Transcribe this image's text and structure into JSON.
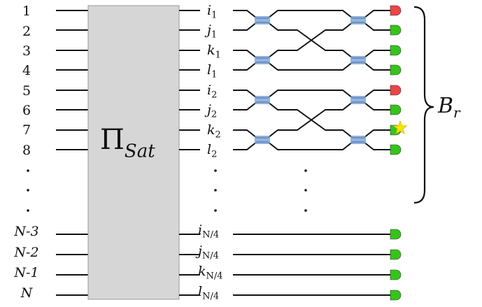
{
  "inputs": [
    "1",
    "2",
    "3",
    "4",
    "5",
    "6",
    "7",
    "8",
    "N-3",
    "N-2",
    "N-1",
    "N"
  ],
  "box_symbol": "Π",
  "box_subscript": "Sat",
  "outputs": [
    {
      "base": "i",
      "sub": "1"
    },
    {
      "base": "j",
      "sub": "1"
    },
    {
      "base": "k",
      "sub": "1"
    },
    {
      "base": "l",
      "sub": "1"
    },
    {
      "base": "i",
      "sub": "2"
    },
    {
      "base": "j",
      "sub": "2"
    },
    {
      "base": "k",
      "sub": "2"
    },
    {
      "base": "l",
      "sub": "2"
    },
    {
      "base": "i",
      "sub": "N/4"
    },
    {
      "base": "j",
      "sub": "N/4"
    },
    {
      "base": "k",
      "sub": "N/4"
    },
    {
      "base": "l",
      "sub": "N/4"
    }
  ],
  "brace_label": "B",
  "brace_subscript": "r",
  "detector_states": [
    "red",
    "green",
    "green",
    "green",
    "red",
    "green",
    "green",
    "green",
    "green",
    "green",
    "green",
    "green"
  ],
  "star_on_output": "k2",
  "colors": {
    "box_fill": "#d6d6d6",
    "coupler": "#7fa7d8",
    "detector_green": "#36c41a",
    "detector_red": "#ef4444",
    "star": "#f5e400"
  }
}
